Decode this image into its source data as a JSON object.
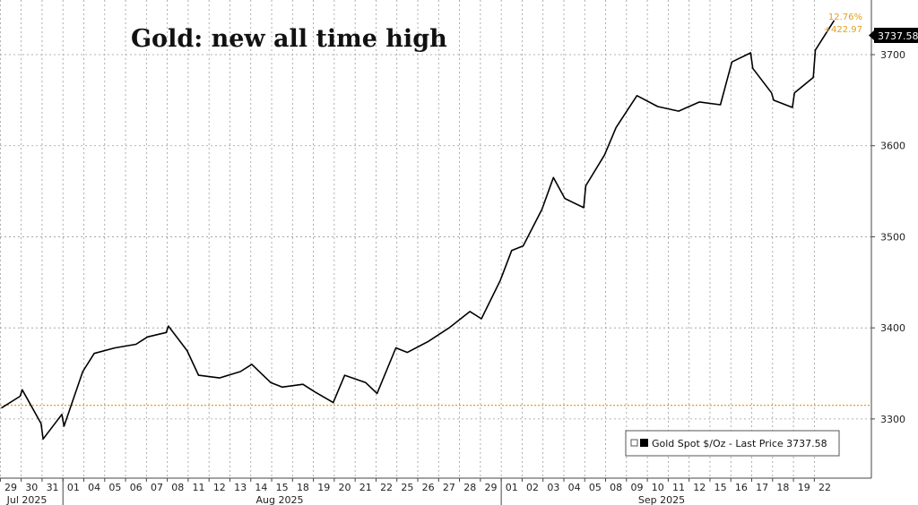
{
  "chart_data": {
    "type": "line",
    "title": "Gold: new all time high",
    "legend": {
      "label": "Gold Spot $/Oz - Last Price 3737.58",
      "placement": "bottom-right"
    },
    "last_price_tag": "3737.58",
    "annotation": {
      "pct_change": "12.76%",
      "abs_change": "+422.97"
    },
    "reference_level": 3315,
    "ylim": [
      3235,
      3760
    ],
    "y_ticks": [
      "3300",
      "3400",
      "3500",
      "3600",
      "3700"
    ],
    "x_ticks": [
      "29",
      "30",
      "31",
      "01",
      "04",
      "05",
      "06",
      "07",
      "08",
      "11",
      "12",
      "13",
      "14",
      "15",
      "18",
      "19",
      "20",
      "21",
      "22",
      "25",
      "26",
      "27",
      "28",
      "29",
      "01",
      "02",
      "03",
      "04",
      "05",
      "08",
      "09",
      "10",
      "11",
      "12",
      "15",
      "16",
      "17",
      "18",
      "19",
      "22"
    ],
    "months": [
      "Jul 2025",
      "Aug 2025",
      "Sep 2025"
    ],
    "grid": true,
    "series": [
      {
        "color": "#000000",
        "x": [
          "Jul 29",
          "Jul 29",
          "Jul 30",
          "Jul 30",
          "Jul 31",
          "Jul 31",
          "Aug 01",
          "Aug 01",
          "Aug 04",
          "Aug 05",
          "Aug 06",
          "Aug 07",
          "Aug 07",
          "Aug 08",
          "Aug 08",
          "Aug 11",
          "Aug 12",
          "Aug 13",
          "Aug 14",
          "Aug 14",
          "Aug 15",
          "Aug 18",
          "Aug 19",
          "Aug 19",
          "Aug 20",
          "Aug 21",
          "Aug 22",
          "Aug 22",
          "Aug 25",
          "Aug 26",
          "Aug 27",
          "Aug 28",
          "Aug 29",
          "Aug 29",
          "Sep 01",
          "Sep 02",
          "Sep 02",
          "Sep 03",
          "Sep 04",
          "Sep 04",
          "Sep 05",
          "Sep 05",
          "Sep 08",
          "Sep 09",
          "Sep 10",
          "Sep 11",
          "Sep 12",
          "Sep 15",
          "Sep 16",
          "Sep 16",
          "Sep 17",
          "Sep 17",
          "Sep 18",
          "Sep 18",
          "Sep 19",
          "Sep 19",
          "Sep 22",
          "Sep 22"
        ],
        "y": [
          3312,
          3325,
          3332,
          3295,
          3278,
          3305,
          3292,
          3352,
          3372,
          3378,
          3382,
          3390,
          3395,
          3402,
          3375,
          3348,
          3345,
          3352,
          3360,
          3340,
          3335,
          3338,
          3330,
          3318,
          3348,
          3340,
          3328,
          3378,
          3373,
          3385,
          3400,
          3418,
          3410,
          3452,
          3485,
          3490,
          3530,
          3565,
          3542,
          3532,
          3556,
          3590,
          3620,
          3655,
          3643,
          3638,
          3648,
          3645,
          3692,
          3702,
          3685,
          3658,
          3650,
          3642,
          3658,
          3675,
          3705,
          3737.58
        ]
      }
    ]
  }
}
